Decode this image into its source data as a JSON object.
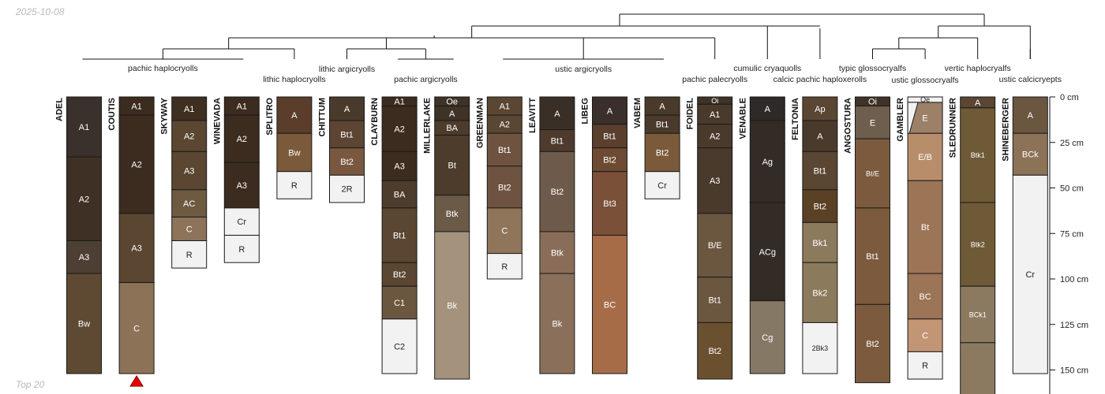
{
  "header": {
    "date": "2025-10-08",
    "footer": "Top 20"
  },
  "depth_axis": {
    "unit": "cm",
    "ticks": [
      {
        "depth": 0,
        "label": "0 cm"
      },
      {
        "depth": 25,
        "label": "25 cm"
      },
      {
        "depth": 50,
        "label": "50 cm"
      },
      {
        "depth": 75,
        "label": "75 cm"
      },
      {
        "depth": 100,
        "label": "100 cm"
      },
      {
        "depth": 125,
        "label": "125 cm"
      },
      {
        "depth": 150,
        "label": "150 cm"
      }
    ]
  },
  "groups": [
    {
      "label": "pachic haplocryolls",
      "members": [
        "ADEL",
        "COUTIS",
        "SKYWAY",
        "WINEVADA"
      ]
    },
    {
      "label": "lithic haplocryolls",
      "members": [
        "SPLITRO"
      ]
    },
    {
      "label": "lithic argicryolls",
      "members": [
        "CHITTUM"
      ]
    },
    {
      "label": "pachic argicryolls",
      "members": [
        "CLAYBURN",
        "MILLERLAKE"
      ]
    },
    {
      "label": "ustic argicryolls",
      "members": [
        "GREENMAN",
        "LEAVITT",
        "LIBEG",
        "VABEM"
      ]
    },
    {
      "label": "pachic palecryolls",
      "members": [
        "FOIDEL"
      ]
    },
    {
      "label": "cumulic cryaquolls",
      "members": [
        "VENABLE"
      ]
    },
    {
      "label": "calcic pachic haploxerolls",
      "members": [
        "FELTONIA"
      ]
    },
    {
      "label": "typic glossocryalfs",
      "members": [
        "ANGOSTURA"
      ]
    },
    {
      "label": "ustic glossocryalfs",
      "members": [
        "GAMBLER"
      ]
    },
    {
      "label": "vertic haplocryalfs",
      "members": [
        "SLEDRUNNER"
      ]
    },
    {
      "label": "ustic calcicryepts",
      "members": [
        "SHINEBERGER"
      ]
    }
  ],
  "profiles": [
    {
      "name": "ADEL",
      "horizons": [
        {
          "name": "A1",
          "top": 0,
          "bottom": 33,
          "color": "#3a312c"
        },
        {
          "name": "A2",
          "top": 33,
          "bottom": 79,
          "color": "#3f3025"
        },
        {
          "name": "A3",
          "top": 79,
          "bottom": 97,
          "color": "#4d3f33"
        },
        {
          "name": "Bw",
          "top": 97,
          "bottom": 152,
          "color": "#5e4a33"
        }
      ]
    },
    {
      "name": "COUTIS",
      "marker": true,
      "horizons": [
        {
          "name": "A1",
          "top": 0,
          "bottom": 10,
          "color": "#3b2c1f"
        },
        {
          "name": "A2",
          "top": 10,
          "bottom": 64,
          "color": "#3b2c1f"
        },
        {
          "name": "A3",
          "top": 64,
          "bottom": 102,
          "color": "#5a4631"
        },
        {
          "name": "C",
          "top": 102,
          "bottom": 152,
          "color": "#8c7357"
        }
      ]
    },
    {
      "name": "SKYWAY",
      "horizons": [
        {
          "name": "A1",
          "top": 0,
          "bottom": 13,
          "color": "#3e2f20"
        },
        {
          "name": "A2",
          "top": 13,
          "bottom": 30,
          "color": "#5a4631"
        },
        {
          "name": "A3",
          "top": 30,
          "bottom": 51,
          "color": "#5a4631"
        },
        {
          "name": "AC",
          "top": 51,
          "bottom": 66,
          "color": "#6e5a40"
        },
        {
          "name": "C",
          "top": 66,
          "bottom": 79,
          "color": "#8d735a"
        },
        {
          "name": "R",
          "top": 79,
          "bottom": 94,
          "color": "#f2f2f2"
        }
      ]
    },
    {
      "name": "WINEVADA",
      "horizons": [
        {
          "name": "A1",
          "top": 0,
          "bottom": 10,
          "color": "#3b2c1f"
        },
        {
          "name": "A2",
          "top": 10,
          "bottom": 36,
          "color": "#3b2c1f"
        },
        {
          "name": "A3",
          "top": 36,
          "bottom": 61,
          "color": "#3b2c1f"
        },
        {
          "name": "Cr",
          "top": 61,
          "bottom": 76,
          "color": "#f2f2f2"
        },
        {
          "name": "R",
          "top": 76,
          "bottom": 91,
          "color": "#f2f2f2"
        }
      ]
    },
    {
      "name": "SPLITRO",
      "horizons": [
        {
          "name": "A",
          "top": 0,
          "bottom": 20,
          "color": "#5a3e2b"
        },
        {
          "name": "Bw",
          "top": 20,
          "bottom": 41,
          "color": "#7a5a3a"
        },
        {
          "name": "R",
          "top": 41,
          "bottom": 56,
          "color": "#f2f2f2"
        }
      ]
    },
    {
      "name": "CHITTUM",
      "horizons": [
        {
          "name": "A",
          "top": 0,
          "bottom": 13,
          "color": "#4a3a2c"
        },
        {
          "name": "Bt1",
          "top": 13,
          "bottom": 28,
          "color": "#5c4532"
        },
        {
          "name": "Bt2",
          "top": 28,
          "bottom": 43,
          "color": "#7a5840"
        },
        {
          "name": "2R",
          "top": 43,
          "bottom": 58,
          "color": "#f2f2f2"
        }
      ]
    },
    {
      "name": "CLAYBURN",
      "horizons": [
        {
          "name": "A1",
          "top": 0,
          "bottom": 5,
          "color": "#3b2c1f"
        },
        {
          "name": "A2",
          "top": 5,
          "bottom": 30,
          "color": "#3b2c1f"
        },
        {
          "name": "A3",
          "top": 30,
          "bottom": 46,
          "color": "#3b2c1f"
        },
        {
          "name": "BA",
          "top": 46,
          "bottom": 61,
          "color": "#4d3c2b"
        },
        {
          "name": "Bt1",
          "top": 61,
          "bottom": 91,
          "color": "#5a4631"
        },
        {
          "name": "Bt2",
          "top": 91,
          "bottom": 104,
          "color": "#5a4631"
        },
        {
          "name": "C1",
          "top": 104,
          "bottom": 122,
          "color": "#6b5640"
        },
        {
          "name": "C2",
          "top": 122,
          "bottom": 152,
          "color": "#f2f2f2"
        }
      ]
    },
    {
      "name": "MILLERLAKE",
      "horizons": [
        {
          "name": "Oe",
          "top": 0,
          "bottom": 5,
          "color": "#3e3326"
        },
        {
          "name": "A",
          "top": 5,
          "bottom": 13,
          "color": "#3e3326"
        },
        {
          "name": "BA",
          "top": 13,
          "bottom": 21,
          "color": "#4d3c2b"
        },
        {
          "name": "Bt",
          "top": 21,
          "bottom": 54,
          "color": "#4d3c2b"
        },
        {
          "name": "Btk",
          "top": 54,
          "bottom": 74,
          "color": "#6b5a48"
        },
        {
          "name": "Bk",
          "top": 74,
          "bottom": 155,
          "color": "#a4927d"
        }
      ]
    },
    {
      "name": "GREENMAN",
      "horizons": [
        {
          "name": "A1",
          "top": 0,
          "bottom": 10,
          "color": "#5a4633"
        },
        {
          "name": "A2",
          "top": 10,
          "bottom": 20,
          "color": "#5a4633"
        },
        {
          "name": "Bt1",
          "top": 20,
          "bottom": 38,
          "color": "#6e5440"
        },
        {
          "name": "Bt2",
          "top": 38,
          "bottom": 61,
          "color": "#6e5440"
        },
        {
          "name": "C",
          "top": 61,
          "bottom": 86,
          "color": "#8f7559"
        },
        {
          "name": "R",
          "top": 86,
          "bottom": 100,
          "color": "#f2f2f2"
        }
      ]
    },
    {
      "name": "LEAVITT",
      "horizons": [
        {
          "name": "A",
          "top": 0,
          "bottom": 18,
          "color": "#3a2f26"
        },
        {
          "name": "Bt1",
          "top": 18,
          "bottom": 30,
          "color": "#4e3b2e"
        },
        {
          "name": "Bt2",
          "top": 30,
          "bottom": 74,
          "color": "#6e5a4a"
        },
        {
          "name": "Btk",
          "top": 74,
          "bottom": 97,
          "color": "#8a6d58"
        },
        {
          "name": "Bk",
          "top": 97,
          "bottom": 152,
          "color": "#8a6f5a"
        }
      ]
    },
    {
      "name": "LIBEG",
      "horizons": [
        {
          "name": "A",
          "top": 0,
          "bottom": 15,
          "color": "#3a2f2a"
        },
        {
          "name": "Bt1",
          "top": 15,
          "bottom": 28,
          "color": "#5a3f2e"
        },
        {
          "name": "Bt2",
          "top": 28,
          "bottom": 41,
          "color": "#6e4a33"
        },
        {
          "name": "Bt3",
          "top": 41,
          "bottom": 76,
          "color": "#7a5038"
        },
        {
          "name": "BC",
          "top": 76,
          "bottom": 152,
          "color": "#a66c48"
        }
      ]
    },
    {
      "name": "VABEM",
      "horizons": [
        {
          "name": "A",
          "top": 0,
          "bottom": 10,
          "color": "#4a3a2c"
        },
        {
          "name": "Bt1",
          "top": 10,
          "bottom": 20,
          "color": "#4a3a2c"
        },
        {
          "name": "Bt2",
          "top": 20,
          "bottom": 41,
          "color": "#7a5a3a"
        },
        {
          "name": "Cr",
          "top": 41,
          "bottom": 56,
          "color": "#f2f2f2"
        }
      ]
    },
    {
      "name": "FOIDEL",
      "horizons": [
        {
          "name": "Oi",
          "top": 0,
          "bottom": 4,
          "color": "#3e3326"
        },
        {
          "name": "A1",
          "top": 4,
          "bottom": 15,
          "color": "#4a3a2c"
        },
        {
          "name": "A2",
          "top": 15,
          "bottom": 28,
          "color": "#4a3a2c"
        },
        {
          "name": "A3",
          "top": 28,
          "bottom": 64,
          "color": "#4a3a2c"
        },
        {
          "name": "B/E",
          "top": 64,
          "bottom": 99,
          "color": "#6b5640"
        },
        {
          "name": "Bt1",
          "top": 99,
          "bottom": 124,
          "color": "#6b5640"
        },
        {
          "name": "Bt2",
          "top": 124,
          "bottom": 155,
          "color": "#6b5030"
        }
      ]
    },
    {
      "name": "VENABLE",
      "horizons": [
        {
          "name": "A",
          "top": 0,
          "bottom": 13,
          "color": "#2e2a27"
        },
        {
          "name": "Ag",
          "top": 13,
          "bottom": 58,
          "color": "#332b26"
        },
        {
          "name": "ACg",
          "top": 58,
          "bottom": 112,
          "color": "#332b26"
        },
        {
          "name": "Cg",
          "top": 112,
          "bottom": 152,
          "color": "#857966"
        }
      ]
    },
    {
      "name": "FELTONIA",
      "horizons": [
        {
          "name": "Ap",
          "top": 0,
          "bottom": 13,
          "color": "#5a4633"
        },
        {
          "name": "A",
          "top": 13,
          "bottom": 30,
          "color": "#4a3a2c"
        },
        {
          "name": "Bt1",
          "top": 30,
          "bottom": 51,
          "color": "#5a4633"
        },
        {
          "name": "Bt2",
          "top": 51,
          "bottom": 69,
          "color": "#5a4025"
        },
        {
          "name": "Bk1",
          "top": 69,
          "bottom": 91,
          "color": "#8c7a5c"
        },
        {
          "name": "Bk2",
          "top": 91,
          "bottom": 124,
          "color": "#8c7a5c"
        },
        {
          "name": "2Bk3",
          "top": 124,
          "bottom": 152,
          "color": "#f2f2f2"
        }
      ]
    },
    {
      "name": "ANGOSTURA",
      "horizons": [
        {
          "name": "Oi",
          "top": 0,
          "bottom": 5,
          "color": "#3e3326"
        },
        {
          "name": "E",
          "top": 5,
          "bottom": 23,
          "color": "#6e5e4e"
        },
        {
          "name": "Bt/E",
          "top": 23,
          "bottom": 61,
          "color": "#7c5a3e"
        },
        {
          "name": "Bt1",
          "top": 61,
          "bottom": 114,
          "color": "#7c5a3e"
        },
        {
          "name": "Bt2",
          "top": 114,
          "bottom": 157,
          "color": "#7c5a3e"
        }
      ]
    },
    {
      "name": "GAMBLER",
      "wavy_top": true,
      "horizons": [
        {
          "name": "Oe",
          "top": 0,
          "bottom": 3,
          "color": "#f2f2f2"
        },
        {
          "name": "E",
          "top": 3,
          "bottom": 20,
          "color": "#9c8068"
        },
        {
          "name": "E/B",
          "top": 20,
          "bottom": 46,
          "color": "#b88e6a"
        },
        {
          "name": "Bt",
          "top": 46,
          "bottom": 97,
          "color": "#9c7456"
        },
        {
          "name": "BC",
          "top": 97,
          "bottom": 122,
          "color": "#9c7456"
        },
        {
          "name": "C",
          "top": 122,
          "bottom": 140,
          "color": "#c29574"
        },
        {
          "name": "R",
          "top": 140,
          "bottom": 155,
          "color": "#f2f2f2"
        }
      ]
    },
    {
      "name": "SLEDRUNNER",
      "horizons": [
        {
          "name": "A",
          "top": 0,
          "bottom": 6,
          "color": "#5a4633"
        },
        {
          "name": "Btk1",
          "top": 6,
          "bottom": 58,
          "color": "#6e5a36"
        },
        {
          "name": "Btk2",
          "top": 58,
          "bottom": 104,
          "color": "#6e5a36"
        },
        {
          "name": "BCk1",
          "top": 104,
          "bottom": 135,
          "color": "#8c7a60"
        },
        {
          "name": "",
          "top": 135,
          "bottom": 165,
          "color": "#8c7a60"
        }
      ]
    },
    {
      "name": "SHINEBERGER",
      "horizons": [
        {
          "name": "A",
          "top": 0,
          "bottom": 20,
          "color": "#6b5640"
        },
        {
          "name": "BCk",
          "top": 20,
          "bottom": 43,
          "color": "#8c7357"
        },
        {
          "name": "Cr",
          "top": 43,
          "bottom": 152,
          "color": "#f2f2f2"
        }
      ]
    }
  ]
}
